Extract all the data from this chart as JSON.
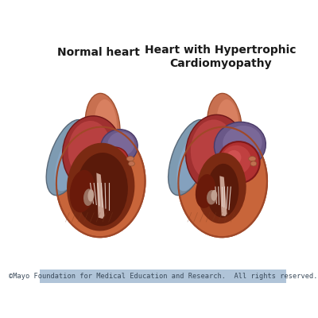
{
  "title_left": "Normal heart",
  "title_right": "Heart with Hypertrophic\nCardiomyopathy",
  "footer_text": "©Mayo Foundation for Medical Education and Research.  All rights reserved.",
  "bg_color": "#ffffff",
  "footer_bg": "#b0c4d8",
  "footer_text_color": "#3a4a5a",
  "title_color": "#1a1a1a",
  "title_fontsize": 10,
  "footer_fontsize": 6.2,
  "fig_width": 4.0,
  "fig_height": 4.0,
  "dpi": 100,
  "heart_orange": "#c8653a",
  "heart_orange_dark": "#a04828",
  "heart_orange_mid": "#b55a34",
  "cavity_dark": "#5a1a0a",
  "cavity_mid": "#7a2a12",
  "blood_red": "#8b1a1a",
  "purple_atrium": "#6a5888",
  "purple_dark": "#4a3a68",
  "red_sphere": "#b03030",
  "red_sphere_dark": "#801818",
  "red_bright": "#c03030",
  "pink_beige": "#c8a090",
  "blue_gray": "#7090aa",
  "blue_gray_dark": "#506070",
  "white_tissue": "#e8d8d0",
  "tan_inner": "#c09080"
}
